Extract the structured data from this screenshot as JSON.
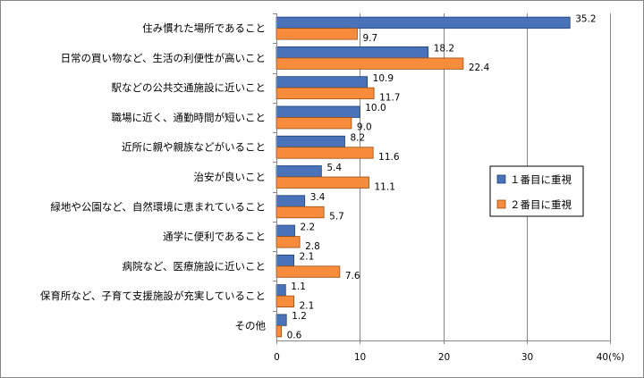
{
  "chart_data": {
    "type": "bar",
    "orientation": "horizontal",
    "categories": [
      "住み慣れた場所であること",
      "日常の買い物など、生活の利便性が高いこと",
      "駅などの公共交通施設に近いこと",
      "職場に近く、通勤時間が短いこと",
      "近所に親や親族などがいること",
      "治安が良いこと",
      "緑地や公園など、自然環境に恵まれていること",
      "通学に便利であること",
      "病院など、医療施設に近いこと",
      "保育所など、子育て支援施設が充実していること",
      "その他"
    ],
    "series": [
      {
        "name": "１番目に重視",
        "color": "#4a72b8",
        "values": [
          35.2,
          18.2,
          10.9,
          10.0,
          8.2,
          5.4,
          3.4,
          2.2,
          2.1,
          1.1,
          1.2
        ],
        "labels": [
          "35.2",
          "18.2",
          "10.9",
          "10.0",
          "8.2",
          "5.4",
          "3.4",
          "2.2",
          "2.1",
          "1.1",
          "1.2"
        ]
      },
      {
        "name": "２番目に重視",
        "color": "#f68c3c",
        "values": [
          9.7,
          22.4,
          11.7,
          9.0,
          11.6,
          11.1,
          5.7,
          2.8,
          7.6,
          2.1,
          0.6
        ],
        "labels": [
          "9.7",
          "22.4",
          "11.7",
          "9.0",
          "11.6",
          "11.1",
          "5.7",
          "2.8",
          "7.6",
          "2.1",
          "0.6"
        ]
      }
    ],
    "xlim": [
      0,
      40
    ],
    "xticks": [
      "0",
      "10",
      "20",
      "30",
      "40(%)"
    ],
    "grid": true,
    "legend_position": "right"
  }
}
